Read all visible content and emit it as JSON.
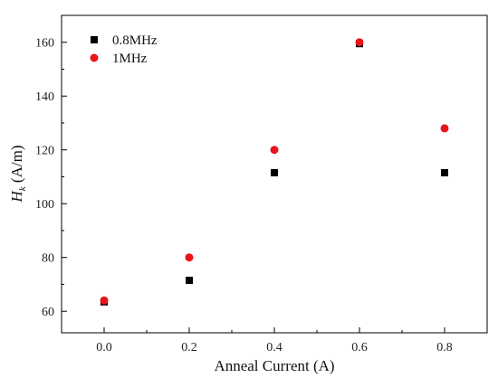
{
  "chart_data": {
    "type": "scatter",
    "title": "",
    "xlabel": "Anneal Current (A)",
    "ylabel": {
      "symbol": "H",
      "subscript": "k",
      "unit": " (A/m)"
    },
    "xlim": [
      -0.1,
      0.9
    ],
    "ylim": [
      52,
      170
    ],
    "xticks": [
      0.0,
      0.2,
      0.4,
      0.6,
      0.8
    ],
    "xtick_labels": [
      "0.0",
      "0.2",
      "0.4",
      "0.6",
      "0.8"
    ],
    "yticks": [
      60,
      80,
      100,
      120,
      140,
      160
    ],
    "ytick_labels": [
      "60",
      "80",
      "100",
      "120",
      "140",
      "160"
    ],
    "grid": false,
    "legend_position": "top-left",
    "series": [
      {
        "name": "0.8MHz",
        "marker": "square",
        "color": "#000000",
        "x": [
          0.0,
          0.2,
          0.4,
          0.6,
          0.8
        ],
        "y": [
          63.5,
          71.5,
          111.5,
          159.5,
          111.5
        ]
      },
      {
        "name": "1MHz",
        "marker": "circle",
        "color": "#e8141b",
        "x": [
          0.0,
          0.2,
          0.4,
          0.6,
          0.8
        ],
        "y": [
          64,
          80,
          120,
          160,
          128
        ]
      }
    ]
  }
}
